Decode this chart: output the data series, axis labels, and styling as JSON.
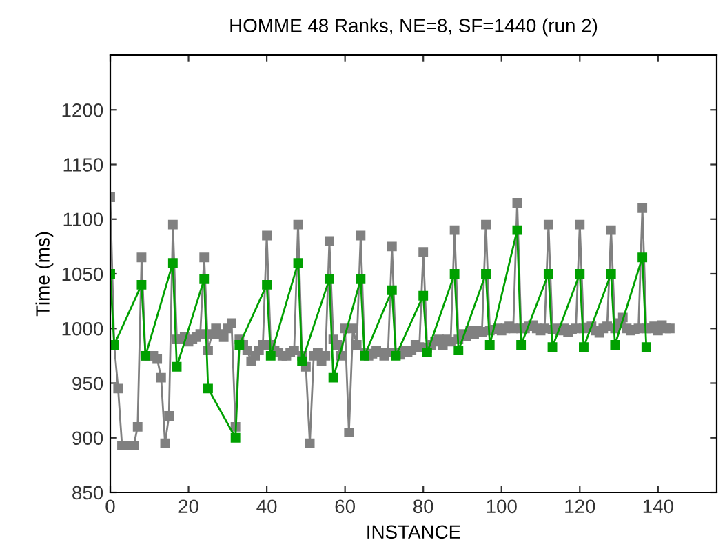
{
  "chart_data": {
    "type": "line",
    "title": "HOMME 48 Ranks, NE=8, SF=1440 (run 2)",
    "xlabel": "INSTANCE",
    "ylabel": "Time (ms)",
    "xlim": [
      0,
      155
    ],
    "xticks": [
      0,
      20,
      40,
      60,
      80,
      100,
      120,
      140
    ],
    "ylim": [
      850,
      1250
    ],
    "yticks": [
      850,
      900,
      950,
      1000,
      1050,
      1100,
      1150,
      1200
    ],
    "grid": false,
    "legend": false,
    "marker": "square",
    "series": [
      {
        "color": "#808080",
        "x": [
          0,
          1,
          2,
          3,
          4,
          5,
          6,
          7,
          8,
          9,
          10,
          11,
          12,
          13,
          14,
          15,
          16,
          17,
          18,
          19,
          20,
          21,
          22,
          23,
          24,
          25,
          26,
          27,
          28,
          29,
          30,
          31,
          32,
          33,
          34,
          35,
          36,
          37,
          38,
          39,
          40,
          41,
          42,
          43,
          44,
          45,
          46,
          47,
          48,
          49,
          50,
          51,
          52,
          53,
          54,
          55,
          56,
          57,
          58,
          59,
          60,
          61,
          62,
          63,
          64,
          65,
          66,
          67,
          68,
          69,
          70,
          71,
          72,
          73,
          74,
          75,
          76,
          77,
          78,
          79,
          80,
          81,
          82,
          83,
          84,
          85,
          86,
          87,
          88,
          89,
          90,
          91,
          92,
          93,
          94,
          95,
          96,
          97,
          98,
          99,
          100,
          101,
          102,
          103,
          104,
          105,
          106,
          107,
          108,
          109,
          110,
          111,
          112,
          113,
          114,
          115,
          116,
          117,
          118,
          119,
          120,
          121,
          122,
          123,
          124,
          125,
          126,
          127,
          128,
          129,
          130,
          131,
          132,
          133,
          134,
          135,
          136,
          137,
          138,
          139,
          140,
          141,
          142,
          143
        ],
        "values": [
          1120,
          985,
          945,
          893,
          893,
          893,
          893,
          910,
          1065,
          975,
          975,
          975,
          972,
          955,
          895,
          920,
          1095,
          990,
          990,
          992,
          988,
          990,
          992,
          995,
          1065,
          980,
          995,
          1000,
          995,
          992,
          1000,
          1005,
          910,
          990,
          985,
          980,
          970,
          975,
          980,
          985,
          1085,
          985,
          980,
          978,
          975,
          975,
          978,
          980,
          1095,
          975,
          965,
          895,
          975,
          978,
          970,
          975,
          1080,
          990,
          985,
          975,
          1000,
          905,
          1000,
          985,
          1085,
          978,
          975,
          977,
          980,
          978,
          975,
          978,
          1075,
          978,
          976,
          980,
          978,
          980,
          985,
          983,
          1070,
          982,
          985,
          988,
          990,
          985,
          990,
          988,
          1090,
          990,
          995,
          993,
          998,
          995,
          998,
          997,
          1095,
          998,
          999,
          1000,
          998,
          1000,
          1002,
          1000,
          1115,
          1000,
          1000,
          1002,
          1003,
          1000,
          998,
          1000,
          1095,
          999,
          1000,
          998,
          1000,
          997,
          999,
          1000,
          1095,
          1000,
          1001,
          1002,
          998,
          996,
          1000,
          1002,
          1090,
          1000,
          1005,
          1010,
          1000,
          998,
          999,
          1000,
          1110,
          1000,
          1000,
          1002,
          998,
          1003,
          1000,
          1000
        ]
      },
      {
        "color": "#00a000",
        "x": [
          0,
          1,
          8,
          9,
          16,
          17,
          24,
          25,
          32,
          33,
          40,
          41,
          48,
          49,
          56,
          57,
          64,
          65,
          72,
          73,
          80,
          81,
          88,
          89,
          96,
          97,
          104,
          105,
          112,
          113,
          120,
          121,
          128,
          129,
          136,
          137
        ],
        "values": [
          1050,
          985,
          1040,
          975,
          1060,
          965,
          1045,
          945,
          900,
          985,
          1040,
          975,
          1060,
          970,
          1045,
          955,
          1045,
          975,
          1035,
          975,
          1030,
          978,
          1050,
          980,
          1050,
          985,
          1090,
          985,
          1050,
          983,
          1050,
          983,
          1050,
          985,
          1065,
          983
        ]
      }
    ]
  }
}
